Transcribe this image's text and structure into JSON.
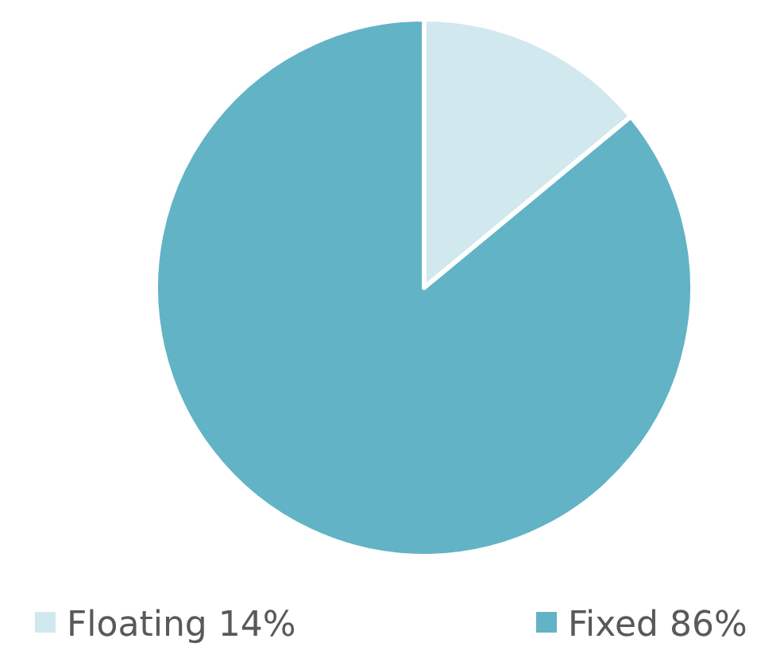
{
  "chart_data": {
    "type": "pie",
    "categories": [
      "Floating 14%",
      "Fixed 86%"
    ],
    "values": [
      14,
      86
    ],
    "colors": [
      "#d0e8ee",
      "#62b3c5"
    ],
    "legend": "bottom"
  }
}
